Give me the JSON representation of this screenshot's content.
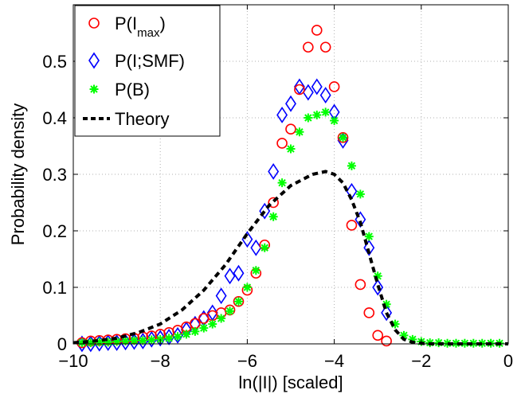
{
  "chart_data": {
    "type": "scatter",
    "xlabel": "ln(|I|)  [scaled]",
    "ylabel": "Probability density",
    "xlim": [
      -10,
      0
    ],
    "ylim": [
      0,
      0.6
    ],
    "xticks": [
      -10,
      -8,
      -6,
      -4,
      -2,
      0
    ],
    "xtick_labels": [
      "−10",
      "−8",
      "−6",
      "−4",
      "−2",
      "0"
    ],
    "yticks": [
      0,
      0.1,
      0.2,
      0.3,
      0.4,
      0.5
    ],
    "ytick_labels": [
      "0",
      "0.1",
      "0.2",
      "0.3",
      "0.4",
      "0.5"
    ],
    "grid": true,
    "legend_position": "top-left",
    "series": [
      {
        "name": "P(I",
        "name_sub": "max",
        "name_suffix": ")",
        "marker": "circle",
        "color": "#ff0000",
        "x": [
          -9.8,
          -9.6,
          -9.4,
          -9.2,
          -9.0,
          -8.8,
          -8.6,
          -8.4,
          -8.2,
          -8.0,
          -7.8,
          -7.6,
          -7.4,
          -7.2,
          -7.0,
          -6.8,
          -6.6,
          -6.4,
          -6.2,
          -6.0,
          -5.8,
          -5.6,
          -5.4,
          -5.2,
          -5.0,
          -4.8,
          -4.6,
          -4.4,
          -4.2,
          -4.0,
          -3.8,
          -3.6,
          -3.4,
          -3.2,
          -3.0,
          -2.8
        ],
        "y": [
          0.002,
          0.005,
          0.006,
          0.007,
          0.008,
          0.009,
          0.01,
          0.012,
          0.014,
          0.017,
          0.02,
          0.024,
          0.03,
          0.036,
          0.045,
          0.05,
          0.055,
          0.06,
          0.075,
          0.095,
          0.125,
          0.175,
          0.25,
          0.355,
          0.38,
          0.45,
          0.525,
          0.555,
          0.525,
          0.455,
          0.365,
          0.21,
          0.105,
          0.055,
          0.015,
          0.005
        ]
      },
      {
        "name": "P(I;SMF)",
        "marker": "diamond",
        "color": "#0000ff",
        "x": [
          -9.8,
          -9.6,
          -9.4,
          -9.2,
          -9.0,
          -8.8,
          -8.6,
          -8.4,
          -8.2,
          -8.0,
          -7.8,
          -7.6,
          -7.4,
          -7.2,
          -7.0,
          -6.8,
          -6.6,
          -6.4,
          -6.2,
          -6.0,
          -5.8,
          -5.6,
          -5.4,
          -5.2,
          -5.0,
          -4.8,
          -4.6,
          -4.4,
          -4.2,
          -4.0,
          -3.8,
          -3.6,
          -3.4,
          -3.2,
          -3.0,
          -2.8
        ],
        "y": [
          0.0,
          0.0,
          0.001,
          0.002,
          0.002,
          0.003,
          0.004,
          0.005,
          0.008,
          0.01,
          0.012,
          0.015,
          0.025,
          0.035,
          0.045,
          0.055,
          0.085,
          0.12,
          0.125,
          0.185,
          0.17,
          0.235,
          0.305,
          0.405,
          0.425,
          0.455,
          0.445,
          0.455,
          0.44,
          0.41,
          0.36,
          0.27,
          0.22,
          0.17,
          0.1,
          0.055
        ]
      },
      {
        "name": "P(B)",
        "marker": "asterisk",
        "color": "#00ff00",
        "x": [
          -9.8,
          -9.6,
          -9.4,
          -9.2,
          -9.0,
          -8.8,
          -8.6,
          -8.4,
          -8.2,
          -8.0,
          -7.8,
          -7.6,
          -7.4,
          -7.2,
          -7.0,
          -6.8,
          -6.6,
          -6.4,
          -6.2,
          -6.0,
          -5.8,
          -5.6,
          -5.4,
          -5.2,
          -5.0,
          -4.8,
          -4.6,
          -4.4,
          -4.2,
          -4.0,
          -3.8,
          -3.6,
          -3.4,
          -3.2,
          -3.0,
          -2.8,
          -2.6,
          -2.4,
          -2.2,
          -2.0,
          -1.8,
          -1.6,
          -1.4,
          -1.2,
          -1.0,
          -0.8,
          -0.6,
          -0.4,
          -0.2
        ],
        "y": [
          0.002,
          0.002,
          0.003,
          0.003,
          0.004,
          0.005,
          0.006,
          0.006,
          0.007,
          0.008,
          0.01,
          0.013,
          0.017,
          0.022,
          0.028,
          0.035,
          0.045,
          0.058,
          0.075,
          0.1,
          0.13,
          0.17,
          0.225,
          0.285,
          0.345,
          0.375,
          0.4,
          0.405,
          0.41,
          0.395,
          0.365,
          0.315,
          0.265,
          0.19,
          0.12,
          0.07,
          0.035,
          0.015,
          0.008,
          0.004,
          0.002,
          0.002,
          0.001,
          0.001,
          0.001,
          0.001,
          0.001,
          0.001,
          0.001
        ]
      },
      {
        "name": "Theory",
        "marker": "dashed-line",
        "color": "#000000",
        "x": [
          -10,
          -9.5,
          -9.0,
          -8.5,
          -8.0,
          -7.5,
          -7.0,
          -6.5,
          -6.0,
          -5.5,
          -5.0,
          -4.5,
          -4.2,
          -4.0,
          -3.8,
          -3.6,
          -3.4,
          -3.2,
          -3.0,
          -2.8,
          -2.6,
          -2.4,
          -2.2,
          -2.0,
          -1.8,
          -1.5,
          -1.0,
          -0.5,
          0.0
        ],
        "y": [
          0.002,
          0.005,
          0.01,
          0.02,
          0.035,
          0.06,
          0.095,
          0.14,
          0.195,
          0.245,
          0.28,
          0.3,
          0.305,
          0.3,
          0.285,
          0.255,
          0.215,
          0.16,
          0.105,
          0.055,
          0.025,
          0.008,
          0.003,
          0.001,
          0.0,
          0.0,
          0.0,
          0.0,
          0.0
        ]
      }
    ]
  }
}
